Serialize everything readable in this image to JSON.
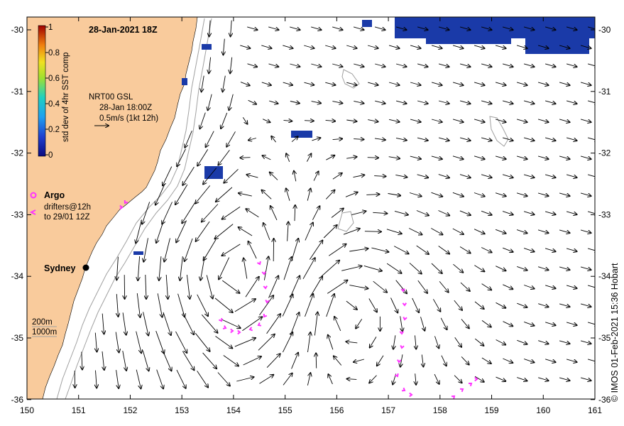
{
  "map": {
    "title": "28-Jan-2021 18Z",
    "colorbar": {
      "label": "std dev of 4hr SST comp",
      "ticks": [
        "1",
        "0.8",
        "0.6",
        "0.4",
        "0.2",
        "0"
      ]
    },
    "reference": {
      "product": "NRT00 GSL",
      "time": "28-Jan 18:00Z",
      "scale": "0.5m/s (1kt 12h)"
    },
    "legend": {
      "argo": "Argo",
      "drifters_line1": "drifters@12h",
      "drifters_line2": "to 29/01 12Z"
    },
    "city": "Sydney",
    "isobaths": {
      "shallow": "200m",
      "deep": "1000m"
    },
    "x_ticks": [
      "150",
      "151",
      "152",
      "153",
      "154",
      "155",
      "156",
      "157",
      "158",
      "159",
      "160",
      "161"
    ],
    "y_ticks": [
      "-30",
      "-31",
      "-32",
      "-33",
      "-34",
      "-35",
      "-36"
    ],
    "credit": "© IMOS 01-Feb-2021 15:36 Hobart",
    "colors": {
      "land": "#f9cb9c",
      "ocean": "#ffffff",
      "vectors": "#000000",
      "drifters": "#ff33ff",
      "sst_patch": "#1a3aa8",
      "isobath": "#a0a0a0"
    }
  }
}
